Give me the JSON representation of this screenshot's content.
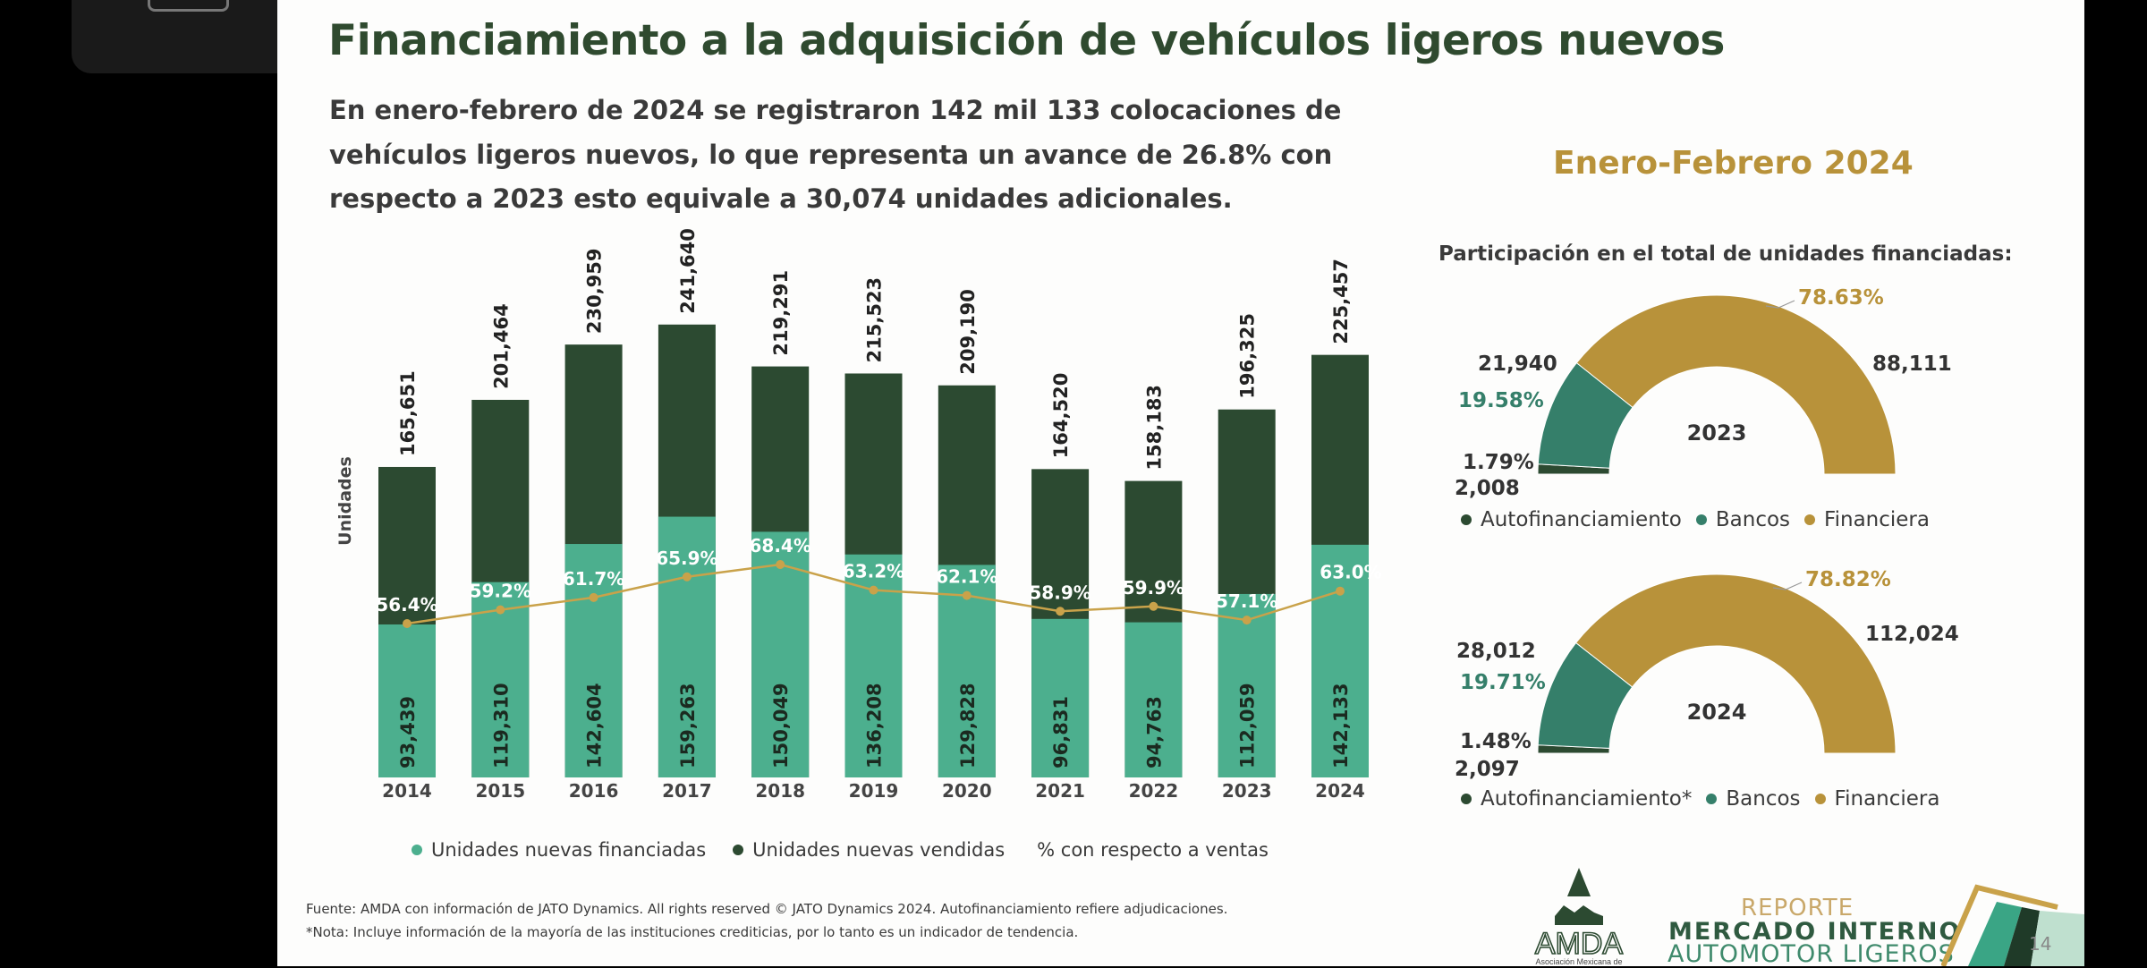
{
  "title": "Financiamiento a la adquisición de vehículos ligeros nuevos",
  "summary": [
    "En enero-febrero de 2024 se registraron 142 mil 133 colocaciones de",
    "vehículos ligeros nuevos, lo que representa un avance de 26.8% con",
    "respecto a 2023 esto equivale a 30,074 unidades adicionales."
  ],
  "right_panel": {
    "period": "Enero-Febrero 2024",
    "subtitle": "Participación en el total de unidades financiadas:"
  },
  "colors": {
    "vendidas": "#2c4a31",
    "financiadas": "#4caf8e",
    "pct_line": "#c9a24a",
    "autofinanciamiento": "#2c4a31",
    "bancos": "#357f6a",
    "financiera": "#b8923a"
  },
  "chart_data": [
    {
      "type": "bar",
      "ylabel": "Unidades",
      "categories": [
        "2014",
        "2015",
        "2016",
        "2017",
        "2018",
        "2019",
        "2020",
        "2021",
        "2022",
        "2023",
        "2024"
      ],
      "series": [
        {
          "name": "Unidades nuevas vendidas",
          "values": [
            165651,
            201464,
            230959,
            241640,
            219291,
            215523,
            209190,
            164520,
            158183,
            196325,
            225457
          ],
          "labels": [
            "165,651",
            "201,464",
            "230,959",
            "241,640",
            "219,291",
            "215,523",
            "209,190",
            "164,520",
            "158,183",
            "196,325",
            "225,457"
          ]
        },
        {
          "name": "Unidades nuevas financiadas",
          "values": [
            93439,
            119310,
            142604,
            159263,
            150049,
            136208,
            129828,
            96831,
            94763,
            112059,
            142133
          ],
          "labels": [
            "93,439",
            "119,310",
            "142,604",
            "159,263",
            "150,049",
            "136,208",
            "129,828",
            "96,831",
            "94,763",
            "112,059",
            "142,133"
          ]
        },
        {
          "name": "% con respecto a ventas",
          "type": "line",
          "values": [
            56.4,
            59.2,
            61.7,
            65.9,
            68.4,
            63.2,
            62.1,
            58.9,
            59.9,
            57.1,
            63.0
          ],
          "labels": [
            "56.4%",
            "59.2%",
            "61.7%",
            "65.9%",
            "68.4%",
            "63.2%",
            "62.1%",
            "58.9%",
            "59.9%",
            "57.1%",
            "63.0%"
          ]
        }
      ],
      "legend": [
        "Unidades nuevas financiadas",
        "Unidades nuevas vendidas",
        "% con respecto a ventas"
      ],
      "legend_position": "bottom"
    },
    {
      "type": "pie",
      "style": "semi-donut",
      "center_label": "2023",
      "slices": [
        {
          "name": "Autofinanciamiento",
          "value": 2008,
          "value_label": "2,008",
          "pct": 1.79,
          "pct_label": "1.79%"
        },
        {
          "name": "Bancos",
          "value": 21940,
          "value_label": "21,940",
          "pct": 19.58,
          "pct_label": "19.58%"
        },
        {
          "name": "Financiera",
          "value": 88111,
          "value_label": "88,111",
          "pct": 78.63,
          "pct_label": "78.63%"
        }
      ],
      "legend": [
        "Autofinanciamiento",
        "Bancos",
        "Financiera"
      ]
    },
    {
      "type": "pie",
      "style": "semi-donut",
      "center_label": "2024",
      "slices": [
        {
          "name": "Autofinanciamiento*",
          "value": 2097,
          "value_label": "2,097",
          "pct": 1.48,
          "pct_label": "1.48%"
        },
        {
          "name": "Bancos",
          "value": 28012,
          "value_label": "28,012",
          "pct": 19.71,
          "pct_label": "19.71%"
        },
        {
          "name": "Financiera",
          "value": 112024,
          "value_label": "112,024",
          "pct": 78.82,
          "pct_label": "78.82%"
        }
      ],
      "legend": [
        "Autofinanciamiento*",
        "Bancos",
        "Financiera"
      ]
    }
  ],
  "footnotes": [
    "Fuente: AMDA con información de JATO Dynamics. All rights reserved © JATO Dynamics 2024. Autofinanciamiento refiere adjudicaciones.",
    "*Nota: Incluye información de la mayoría de las instituciones crediticias, por lo tanto es un indicador de tendencia."
  ],
  "branding": {
    "logo": "AMDA",
    "logo_caption": "Asociación Mexicana de",
    "report_line1": "REPORTE",
    "report_line2": "MERCADO INTERNO",
    "report_line3": "AUTOMOTOR LIGEROS",
    "page_number": "14"
  }
}
